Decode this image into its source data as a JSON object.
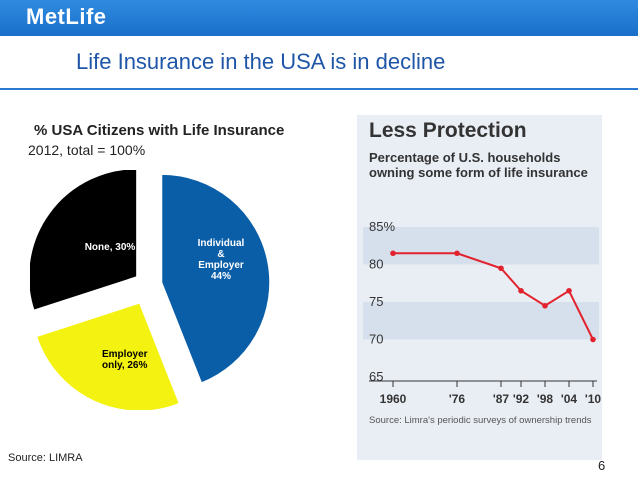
{
  "header": {
    "logo": "MetLife"
  },
  "slide": {
    "title": "Life Insurance in the USA is in decline",
    "source": "Source: LIMRA",
    "page_number": "6"
  },
  "colors": {
    "header_blue": "#1a6fc9",
    "title_blue": "#1f56a8",
    "pie_individual": "#0a5ea8",
    "pie_employer": "#f4f211",
    "pie_none": "#000000",
    "line_red": "#e2232d",
    "chart_bg": "#e9eef5",
    "band": "#d6e0ec"
  },
  "chart_data": [
    {
      "type": "pie",
      "title": "% USA Citizens with Life Insurance",
      "subtitle": "2012, total = 100%",
      "slices": [
        {
          "label": "Individual & Employer 44%",
          "value": 44,
          "color": "#0a5ea8"
        },
        {
          "label": "Employer only, 26%",
          "value": 26,
          "color": "#f4f211"
        },
        {
          "label": "None, 30%",
          "value": 30,
          "color": "#000000"
        }
      ],
      "exploded": true
    },
    {
      "type": "line",
      "title": "Less Protection",
      "subtitle": "Percentage of U.S. households owning some form of life insurance",
      "x": [
        "1960",
        "'76",
        "'87",
        "'92",
        "'98",
        "'04",
        "'10"
      ],
      "x_years": [
        1960,
        1976,
        1987,
        1992,
        1998,
        2004,
        2010
      ],
      "values": [
        81.5,
        81.5,
        79.5,
        76.5,
        74.5,
        76.5,
        70
      ],
      "y_ticks": [
        "85%",
        "80",
        "75",
        "70",
        "65"
      ],
      "ylim": [
        65,
        85
      ],
      "source": "Source: Limra's periodic surveys of ownership trends"
    }
  ]
}
